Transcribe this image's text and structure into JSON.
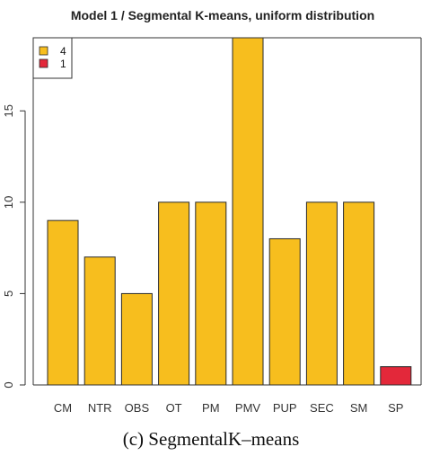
{
  "chart_data": {
    "type": "bar",
    "title": "Model 1 / Segmental K-means, uniform distribution",
    "categories": [
      "CM",
      "NTR",
      "OBS",
      "OT",
      "PM",
      "PMV",
      "PUP",
      "SEC",
      "SM",
      "SP"
    ],
    "values": [
      9,
      7,
      5,
      10,
      10,
      19,
      8,
      10,
      10,
      1
    ],
    "bar_colors": [
      "#F7BE1E",
      "#F7BE1E",
      "#F7BE1E",
      "#F7BE1E",
      "#F7BE1E",
      "#F7BE1E",
      "#F7BE1E",
      "#F7BE1E",
      "#F7BE1E",
      "#E3283A"
    ],
    "ylim": [
      0,
      19
    ],
    "yticks": [
      0,
      5,
      10,
      15
    ],
    "legend": {
      "position": "top-left",
      "entries": [
        {
          "label": "4",
          "color": "#F7BE1E"
        },
        {
          "label": "1",
          "color": "#E3283A"
        }
      ]
    }
  },
  "caption": "(c) SegmentalK–means"
}
